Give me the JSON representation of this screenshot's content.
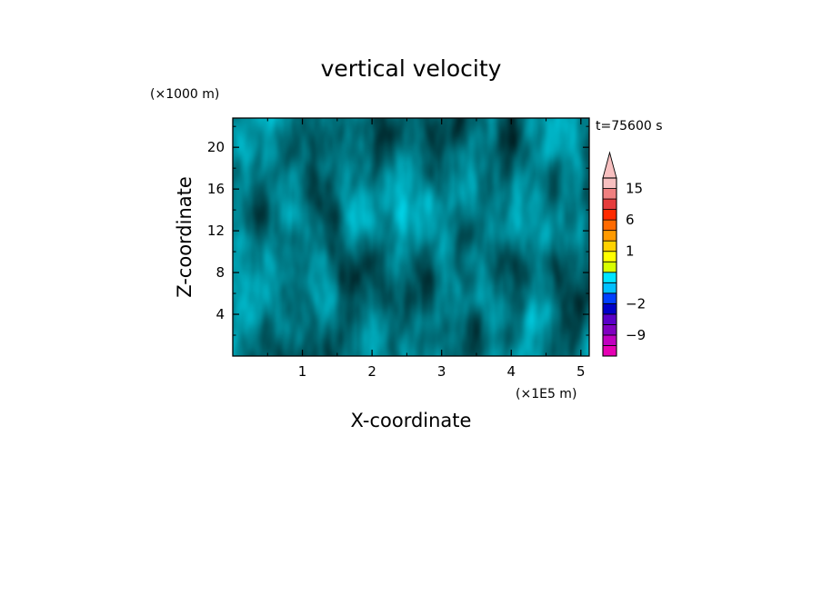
{
  "chart_data": {
    "type": "heatmap",
    "title": "vertical velocity",
    "xlabel": "X-coordinate",
    "ylabel": "Z-coordinate",
    "x_unit": "(×1E5 m)",
    "y_unit": "(×1000 m)",
    "time_label": "t=75600 s",
    "xlim": [
      0,
      5.12
    ],
    "ylim": [
      0,
      22.8
    ],
    "x_ticks": [
      1,
      2,
      3,
      4,
      5
    ],
    "y_ticks": [
      4,
      8,
      12,
      16,
      20
    ],
    "field_classes": {
      "positive": "0 to 1",
      "negative": "-1 to 0"
    },
    "colorbar": {
      "levels": [
        -12,
        -9,
        -6,
        -4,
        -2,
        -1,
        -0.5,
        0,
        0.5,
        1,
        2,
        4,
        6,
        9,
        12,
        15,
        20
      ],
      "colors": [
        "#e600b4",
        "#c000c0",
        "#8000c0",
        "#5a00c8",
        "#0000c8",
        "#0040ff",
        "#00bfff",
        "#00e5ff",
        "#d7ff00",
        "#ffff00",
        "#ffd200",
        "#ff9a00",
        "#ff6a00",
        "#ff2a00",
        "#e63c3c",
        "#f08080",
        "#f7c0c0"
      ],
      "labels": [
        "15",
        "6",
        "1",
        "−2",
        "−9"
      ],
      "extend": "max"
    },
    "colors": {
      "positive": "#d8ff00",
      "negative": "#00e8ff"
    }
  }
}
